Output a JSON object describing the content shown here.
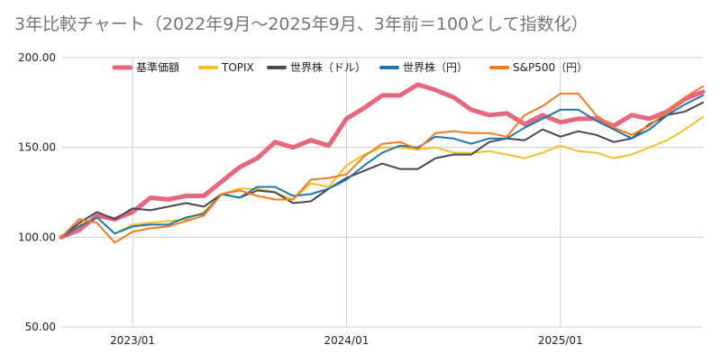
{
  "chart_data": {
    "type": "line",
    "title": "3年比較チャート（2022年9月〜2025年9月、3年前＝100として指数化）",
    "xlabel": "",
    "ylabel": "",
    "ylim": [
      50,
      200
    ],
    "yticks": [
      "200.00",
      "150.00",
      "100.00",
      "50.00"
    ],
    "ytick_values": [
      200,
      150,
      100,
      50
    ],
    "xticks": [
      {
        "label": "2023/01",
        "month_index": 4
      },
      {
        "label": "2024/01",
        "month_index": 16
      },
      {
        "label": "2025/01",
        "month_index": 28
      }
    ],
    "x_start": "2022/09",
    "grid": true,
    "legend_position": "top",
    "series": [
      {
        "name": "基準価額",
        "color": "#e8677f",
        "width": 5,
        "values": [
          100,
          104,
          112,
          110,
          114,
          122,
          121,
          123,
          123,
          131,
          139,
          144,
          153,
          150,
          154,
          151,
          166,
          172,
          179,
          179,
          185,
          182,
          178,
          171,
          168,
          169,
          163,
          168,
          164,
          166,
          166,
          162,
          168,
          166,
          170,
          177,
          181
        ]
      },
      {
        "name": "TOPIX",
        "color": "#f6bf26",
        "width": 2,
        "values": [
          100,
          107,
          111,
          102,
          107,
          108,
          109,
          110,
          114,
          124,
          127,
          127,
          125,
          121,
          130,
          128,
          140,
          146,
          150,
          150,
          149,
          150,
          147,
          147,
          148,
          146,
          144,
          147,
          151,
          148,
          147,
          144,
          146,
          150,
          154,
          160,
          167
        ]
      },
      {
        "name": "世界株（ドル）",
        "color": "#4a4458",
        "width": 2,
        "values": [
          100,
          108,
          114,
          110,
          116,
          115,
          117,
          119,
          117,
          124,
          122,
          126,
          125,
          119,
          120,
          127,
          133,
          137,
          141,
          138,
          138,
          144,
          146,
          146,
          153,
          155,
          154,
          160,
          156,
          159,
          157,
          153,
          155,
          163,
          168,
          170,
          175
        ]
      },
      {
        "name": "世界株（円）",
        "color": "#1f75ae",
        "width": 2,
        "values": [
          100,
          106,
          111,
          102,
          106,
          107,
          107,
          111,
          113,
          124,
          122,
          128,
          128,
          123,
          124,
          127,
          132,
          140,
          147,
          151,
          150,
          156,
          155,
          152,
          155,
          155,
          161,
          166,
          171,
          171,
          165,
          160,
          155,
          160,
          168,
          174,
          179
        ]
      },
      {
        "name": "S&P500（円）",
        "color": "#f07b22",
        "width": 2,
        "values": [
          100,
          110,
          108,
          97,
          103,
          105,
          106,
          109,
          112,
          124,
          126,
          123,
          121,
          121,
          132,
          133,
          135,
          145,
          152,
          153,
          149,
          158,
          159,
          158,
          158,
          156,
          168,
          173,
          180,
          180,
          168,
          161,
          157,
          162,
          170,
          178,
          184
        ]
      }
    ]
  }
}
